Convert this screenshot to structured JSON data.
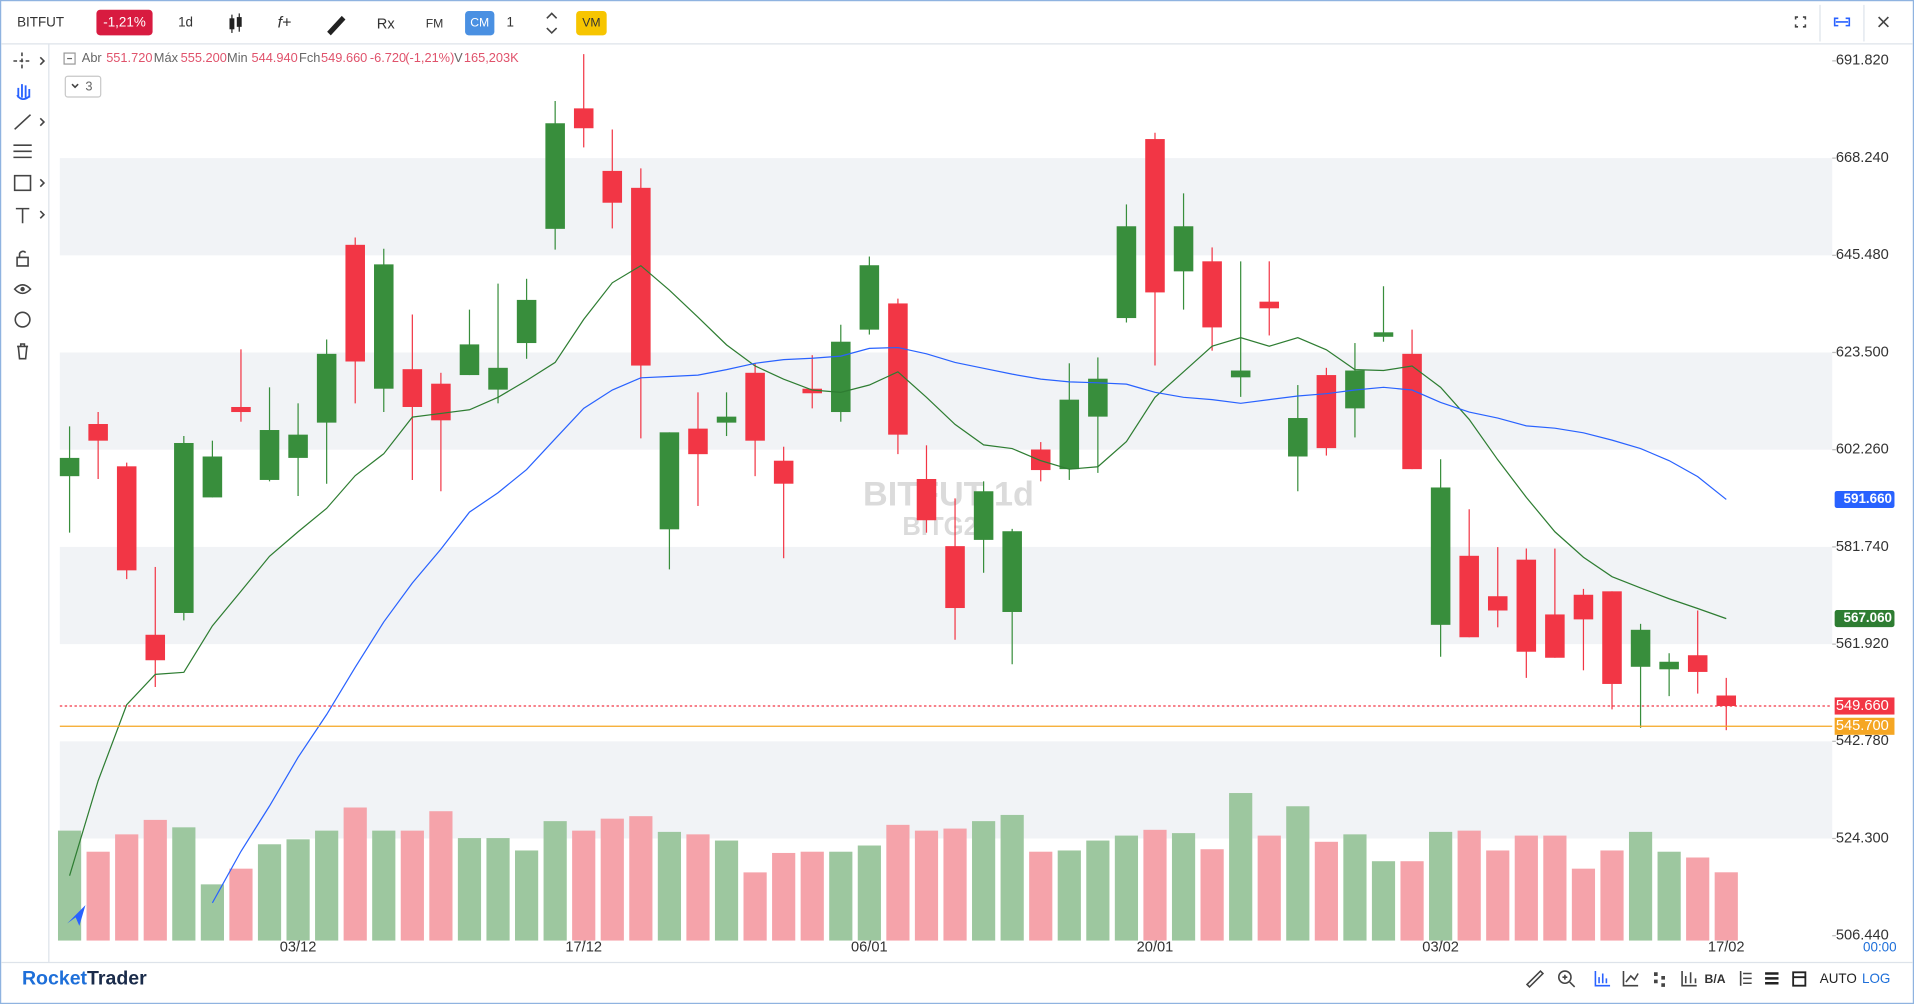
{
  "toolbar": {
    "symbol": "BITFUT",
    "change": "-1,21%",
    "interval": "1d",
    "functions": "f+",
    "rx": "Rx",
    "fm": "FM",
    "cm": "CM",
    "count": 1,
    "vm": "VM"
  },
  "legend": {
    "open_label": "Abr",
    "open": "551.720",
    "high_label": "Máx",
    "high": "555.200",
    "low_label": "Min",
    "low": "544.940",
    "close_label": "Fch",
    "close": "549.660",
    "change": "-6.720",
    "change_pct": "(-1,21%)",
    "volume_label": "V",
    "volume": "165,203K",
    "collapsed_count": 3
  },
  "watermark": {
    "symbol": "BITFUT 1d",
    "contract": "BITG25"
  },
  "chart_data": {
    "type": "candlestick",
    "log_scale": true,
    "grid": true,
    "categories": [
      null,
      null,
      null,
      null,
      null,
      null,
      null,
      null,
      "03/12",
      null,
      null,
      null,
      null,
      null,
      null,
      null,
      null,
      null,
      "17/12",
      null,
      null,
      null,
      null,
      null,
      null,
      null,
      null,
      null,
      "06/01",
      null,
      null,
      null,
      null,
      null,
      null,
      null,
      null,
      null,
      "20/01",
      null,
      null,
      null,
      null,
      null,
      null,
      null,
      null,
      null,
      "03/02",
      null,
      null,
      null,
      null,
      null,
      null,
      null,
      null,
      null,
      "17/02"
    ],
    "open": [
      596.6,
      607.8,
      598.7,
      563.8,
      568.2,
      592.1,
      611.5,
      595.8,
      600.5,
      608.1,
      647.9,
      615.5,
      619.8,
      616.6,
      618.5,
      615.3,
      625.6,
      651.6,
      680.2,
      665.2,
      661.2,
      585.4,
      606.8,
      608.1,
      619.0,
      599.9,
      615.5,
      610.4,
      628.6,
      634.5,
      596.0,
      581.9,
      583.2,
      568.4,
      602.3,
      598.1,
      609.4,
      631.2,
      672.8,
      641.8,
      644.1,
      618.0,
      634.9,
      600.8,
      618.5,
      611.2,
      627.0,
      623.2,
      565.8,
      579.9,
      571.6,
      579.1,
      567.9,
      571.9,
      572.6,
      557.4,
      556.9,
      559.7,
      551.72
    ],
    "high": [
      607.3,
      610.4,
      599.5,
      577.6,
      605.2,
      604.2,
      624.2,
      615.8,
      612.3,
      626.4,
      649.6,
      647.0,
      632.0,
      619.0,
      633.1,
      639.0,
      640.1,
      682.0,
      693.5,
      675.1,
      665.8,
      606.0,
      614.7,
      614.7,
      621.1,
      602.9,
      622.9,
      629.7,
      645.2,
      635.6,
      603.2,
      591.9,
      595.5,
      585.5,
      603.9,
      621.1,
      622.4,
      657.3,
      674.3,
      659.9,
      647.3,
      644.1,
      644.1,
      616.3,
      620.1,
      625.6,
      638.4,
      628.6,
      600.2,
      589.6,
      581.7,
      581.4,
      581.4,
      573.1,
      572.6,
      566.0,
      560.1,
      568.7,
      555.2
    ],
    "low": [
      584.7,
      596.0,
      575.1,
      553.4,
      566.7,
      592.1,
      608.3,
      595.5,
      592.4,
      595.0,
      612.3,
      610.4,
      595.8,
      593.4,
      618.5,
      612.3,
      622.1,
      646.8,
      670.8,
      651.7,
      604.7,
      577.1,
      590.3,
      605.2,
      596.6,
      579.4,
      611.2,
      608.3,
      627.5,
      601.3,
      584.7,
      562.8,
      576.4,
      557.9,
      595.5,
      595.8,
      597.3,
      630.2,
      620.6,
      633.1,
      623.9,
      613.7,
      627.3,
      593.4,
      601.0,
      604.9,
      625.9,
      598.1,
      559.4,
      563.3,
      565.3,
      555.2,
      559.2,
      556.7,
      549.0,
      545.4,
      551.6,
      552.1,
      544.94
    ],
    "close": [
      600.5,
      604.2,
      576.9,
      558.7,
      603.7,
      600.8,
      610.4,
      606.5,
      605.5,
      623.2,
      621.5,
      643.4,
      611.5,
      608.6,
      625.3,
      620.1,
      635.3,
      676.6,
      675.4,
      657.7,
      620.6,
      606.0,
      601.3,
      609.4,
      604.2,
      595.0,
      614.5,
      625.9,
      643.2,
      605.5,
      587.3,
      569.2,
      593.4,
      585.0,
      597.9,
      613.1,
      617.7,
      652.2,
      637.0,
      652.2,
      629.1,
      619.5,
      633.4,
      609.1,
      602.6,
      619.5,
      628.0,
      598.1,
      594.2,
      563.3,
      568.7,
      560.4,
      559.2,
      566.9,
      554.0,
      564.8,
      558.4,
      556.38,
      549.66
    ],
    "up_color": "#388e3c",
    "down_color": "#f23645",
    "volume": {
      "values": [
        266,
        215,
        257,
        292,
        274,
        136,
        174,
        233,
        245,
        266,
        322,
        266,
        266,
        313,
        248,
        248,
        218,
        289,
        266,
        295,
        301,
        263,
        257,
        242,
        165,
        212,
        215,
        215,
        230,
        280,
        266,
        271,
        289,
        304,
        215,
        218,
        242,
        254,
        268,
        260,
        221,
        357,
        254,
        325,
        239,
        257,
        192,
        192,
        263,
        266,
        218,
        254,
        254,
        174,
        218,
        263,
        215,
        201,
        165.203
      ],
      "vlim": [
        0,
        800
      ],
      "up_color": "#9dc79f",
      "down_color": "#f5a3aa"
    },
    "series": [
      {
        "color": "#2e7d32",
        "last_label": "567.060",
        "values": [
          517.4,
          535.2,
          549.9,
          555.9,
          556.3,
          565.6,
          572.6,
          579.8,
          584.9,
          589.8,
          596.7,
          601.4,
          609.3,
          610.1,
          610.9,
          613.6,
          617.3,
          621.3,
          630.9,
          639.2,
          643.1,
          637.5,
          631.4,
          625.2,
          620.5,
          617.6,
          615.2,
          614.7,
          616.3,
          619.2,
          613.6,
          607.7,
          603.3,
          602.5,
          599.9,
          598.1,
          598.6,
          604.0,
          613.6,
          619.2,
          624.9,
          626.8,
          624.9,
          626.8,
          624.1,
          619.7,
          619.5,
          620.5,
          615.8,
          608.8,
          600.1,
          592.1,
          584.9,
          579.6,
          575.6,
          573.3,
          571.1,
          569.1,
          567.06
        ]
      },
      {
        "color": "#2962ff",
        "last_label": "591.660",
        "values": [
          null,
          null,
          null,
          null,
          null,
          512.4,
          521.9,
          530.4,
          539.7,
          548.0,
          557.3,
          566.4,
          574.3,
          581.3,
          589.0,
          593.1,
          598.0,
          604.6,
          611.2,
          615.2,
          617.9,
          618.2,
          618.5,
          619.7,
          621.1,
          621.9,
          622.2,
          622.7,
          624.4,
          624.6,
          623.2,
          621.3,
          620.0,
          618.7,
          617.6,
          617.0,
          616.8,
          616.5,
          614.7,
          613.6,
          613.1,
          612.3,
          613.1,
          613.9,
          614.4,
          615.2,
          615.8,
          615.2,
          612.5,
          610.4,
          609.1,
          607.4,
          606.9,
          605.9,
          604.3,
          602.5,
          599.9,
          596.5,
          591.66
        ]
      }
    ],
    "price_lines": [
      {
        "value": 549.66,
        "label": "549.660",
        "color": "#f23645",
        "style": "dotted"
      },
      {
        "value": 545.7,
        "label": "545.700",
        "color": "#f5a623",
        "style": "solid"
      }
    ],
    "ylim": [
      505.56,
      694.2
    ],
    "yticks": [
      {
        "value": 506.44,
        "label": "506.440"
      },
      {
        "value": 524.3,
        "label": "524.300"
      },
      {
        "value": 542.78,
        "label": "542.780"
      },
      {
        "value": 561.92,
        "label": "561.920"
      },
      {
        "value": 581.74,
        "label": "581.740"
      },
      {
        "value": 602.26,
        "label": "602.260"
      },
      {
        "value": 623.5,
        "label": "623.500"
      },
      {
        "value": 645.48,
        "label": "645.480"
      },
      {
        "value": 668.24,
        "label": "668.240"
      },
      {
        "value": 691.82,
        "label": "691.820"
      }
    ]
  },
  "footer": {
    "brand_a": "Rocket",
    "brand_b": "Trader",
    "bid_ask": "B/A",
    "auto": "AUTO",
    "log": "LOG",
    "time": "00:00"
  }
}
